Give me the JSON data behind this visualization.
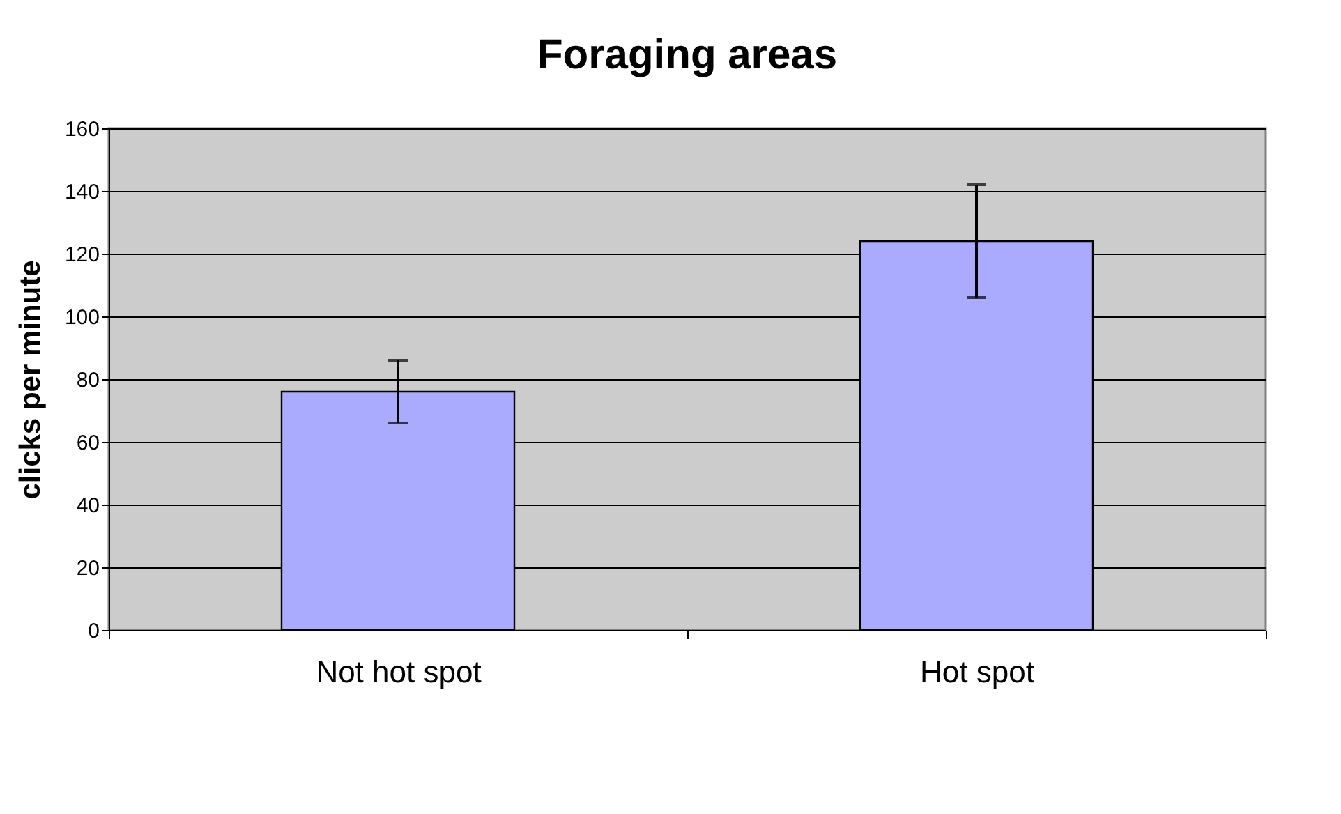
{
  "chart_data": {
    "type": "bar",
    "title": "Foraging  areas",
    "ylabel": "clicks per minute",
    "categories": [
      "Not hot spot",
      "Hot spot"
    ],
    "values": [
      76,
      124
    ],
    "errors": [
      10,
      18
    ],
    "color": "#aaaaff",
    "ylim": [
      0,
      160
    ],
    "yticks": [
      0,
      20,
      40,
      60,
      80,
      100,
      120,
      140,
      160
    ],
    "grid": "y"
  }
}
